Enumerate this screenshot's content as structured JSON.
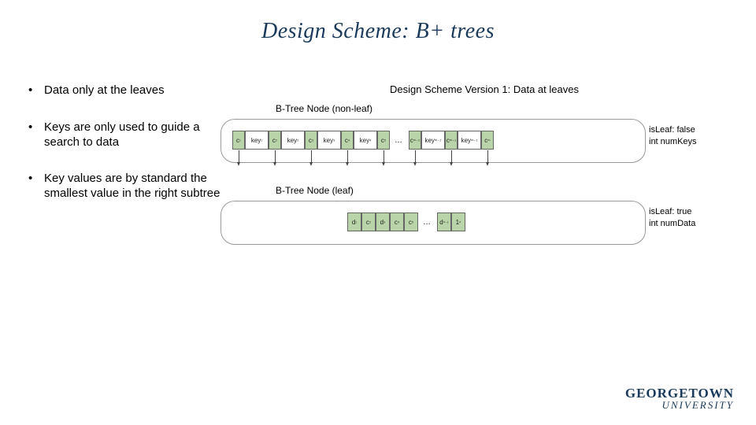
{
  "title": "Design Scheme: B+ trees",
  "bullets": [
    "Data only at the leaves",
    "Keys are only used to guide a search to data",
    "Key values are by standard the smallest value in the right subtree"
  ],
  "diagram": {
    "title": "Design Scheme Version 1: Data at leaves",
    "nonleaf": {
      "header": "B-Tree Node (non-leaf)",
      "annot_line1": "isLeaf: false",
      "annot_line2": "int numKeys",
      "cells_a": [
        {
          "t": "c",
          "label": "c₁"
        },
        {
          "t": "k",
          "label": "key₁"
        },
        {
          "t": "c",
          "label": "c₂"
        },
        {
          "t": "k",
          "label": "key₂"
        },
        {
          "t": "c",
          "label": "c₃"
        },
        {
          "t": "k",
          "label": "key₃"
        },
        {
          "t": "c",
          "label": "c₄"
        },
        {
          "t": "k",
          "label": "key₄"
        },
        {
          "t": "c",
          "label": "c₅"
        }
      ],
      "cells_b": [
        {
          "t": "c",
          "label": "cₘ₋₂"
        },
        {
          "t": "k",
          "label": "keyₘ₋₂"
        },
        {
          "t": "c",
          "label": "cₘ₋₁"
        },
        {
          "t": "k",
          "label": "keyₘ₋₁"
        },
        {
          "t": "c",
          "label": "cₘ"
        }
      ]
    },
    "leaf": {
      "header": "B-Tree Node (leaf)",
      "annot_line1": "isLeaf: true",
      "annot_line2": "int numData",
      "cells_a": [
        {
          "t": "d",
          "label": "d₁"
        },
        {
          "t": "d",
          "label": "c₂"
        },
        {
          "t": "d",
          "label": "d₃"
        },
        {
          "t": "d",
          "label": "c₄"
        },
        {
          "t": "d",
          "label": "c₅"
        }
      ],
      "cells_b": [
        {
          "t": "d",
          "label": "dₙ₋₁"
        },
        {
          "t": "d",
          "label": "1ₙ"
        }
      ]
    }
  },
  "logo": {
    "main": "GEORGETOWN",
    "sub": "UNIVERSITY"
  },
  "colors": {
    "title": "#1a3a5c",
    "cell_green": "#b8d4a8",
    "cell_white": "#ffffff",
    "border": "#999999",
    "background": "#ffffff"
  }
}
